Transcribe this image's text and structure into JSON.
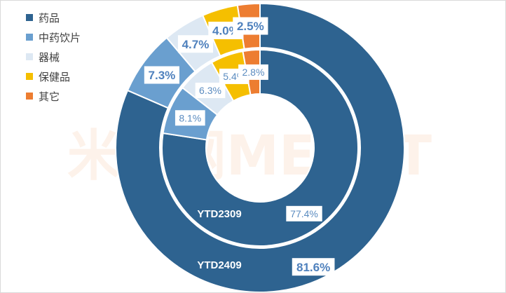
{
  "chart_data": {
    "type": "pie",
    "subtype": "doughnut",
    "categories": [
      "药品",
      "中药饮片",
      "器械",
      "保健品",
      "其它"
    ],
    "colors": [
      "#2e6390",
      "#6a9fcf",
      "#dde8f3",
      "#f5bf00",
      "#ed7d31"
    ],
    "legend": "left",
    "series": [
      {
        "name": "YTD2409",
        "ring": "outer",
        "values": [
          81.6,
          7.3,
          4.7,
          4.0,
          2.5
        ],
        "labels": [
          "81.6%",
          "7.3%",
          "4.7%",
          "4.0%",
          "2.5%"
        ]
      },
      {
        "name": "YTD2309",
        "ring": "inner",
        "values": [
          77.4,
          8.1,
          6.3,
          5.4,
          2.8
        ],
        "labels": [
          "77.4%",
          "8.1%",
          "6.3%",
          "5.4%",
          "2.8%"
        ]
      }
    ]
  },
  "watermark": "米内网MENET"
}
